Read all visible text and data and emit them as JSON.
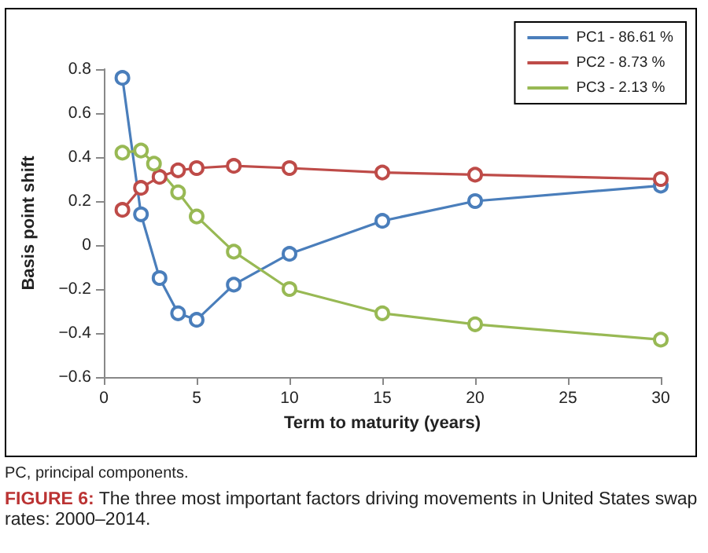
{
  "chart_data": {
    "type": "line",
    "title": "FIGURE 6: The three most important factors driving movements in United States swap rates: 2000–2014.",
    "xlabel": "Term to maturity (years)",
    "ylabel": "Basis point shift",
    "x": [
      1,
      2,
      3,
      4,
      5,
      7,
      10,
      15,
      20,
      30
    ],
    "series": [
      {
        "name": "PC1 - 86.61 %",
        "color": "#4a7ebb",
        "values": [
          0.76,
          0.14,
          -0.15,
          -0.31,
          -0.34,
          -0.18,
          -0.04,
          0.11,
          0.2,
          0.27
        ]
      },
      {
        "name": "PC2 - 8.73 %",
        "color": "#be4b48",
        "values": [
          0.16,
          0.26,
          0.31,
          0.34,
          0.35,
          0.36,
          0.35,
          0.33,
          0.32,
          0.3
        ]
      },
      {
        "name": "PC3 - 2.13 %",
        "color": "#98b954",
        "x": [
          1,
          2,
          2.7,
          4,
          5,
          7,
          10,
          15,
          20,
          30
        ],
        "values": [
          0.42,
          0.43,
          0.37,
          0.24,
          0.13,
          -0.03,
          -0.2,
          -0.31,
          -0.36,
          -0.43
        ]
      }
    ],
    "xlim": [
      0,
      30
    ],
    "xticks": [
      0,
      5,
      10,
      15,
      20,
      25,
      30
    ],
    "ylim": [
      -0.6,
      0.8
    ],
    "yticks": [
      {
        "value": -0.6,
        "label": "−0.6"
      },
      {
        "value": -0.4,
        "label": "−0.4"
      },
      {
        "value": -0.2,
        "label": "−0.2"
      },
      0,
      0.2,
      0.4,
      0.6,
      0.8
    ],
    "grid": false,
    "legend": "top right",
    "marker": "circle",
    "line_style": "solid",
    "annotations": [
      "PC, principal components."
    ]
  }
}
